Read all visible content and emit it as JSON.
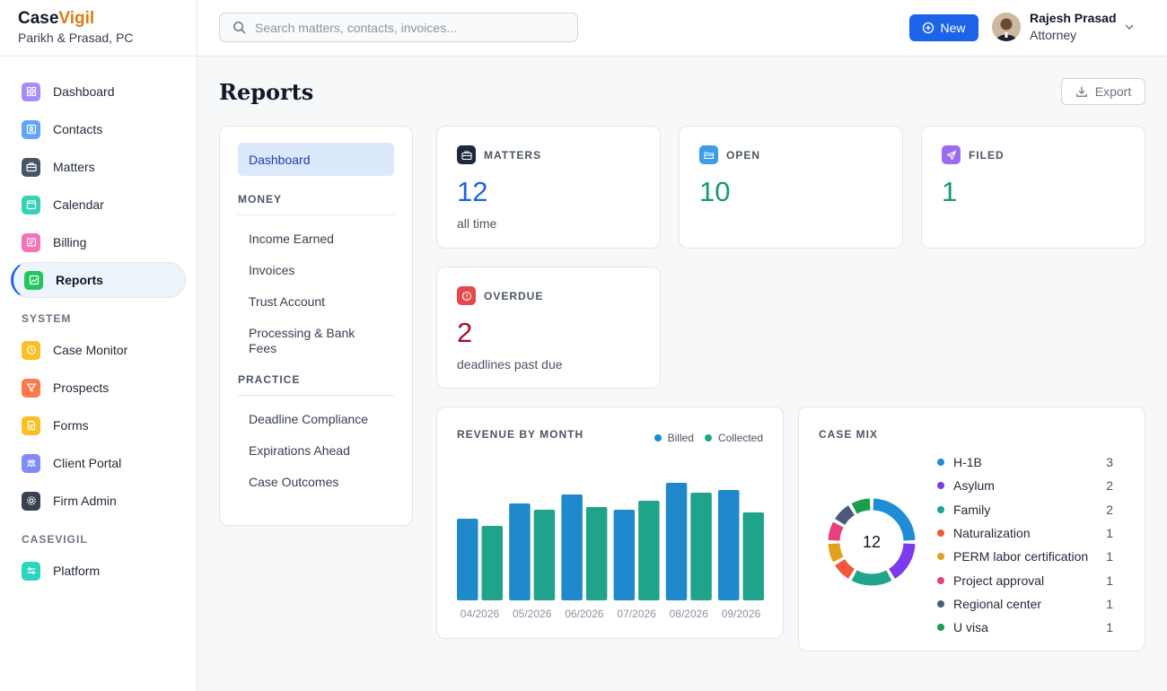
{
  "brand": {
    "name_prefix": "Case",
    "name_accent": "Vigil",
    "firm": "Parikh & Prasad, PC"
  },
  "sidebar": {
    "items": [
      {
        "label": "Dashboard",
        "icon": "grid-icon",
        "color": "#a78bfa"
      },
      {
        "label": "Contacts",
        "icon": "contact-card-icon",
        "color": "#60a5fa"
      },
      {
        "label": "Matters",
        "icon": "briefcase-icon",
        "color": "#475569"
      },
      {
        "label": "Calendar",
        "icon": "calendar-icon",
        "color": "#34d3b4"
      },
      {
        "label": "Billing",
        "icon": "receipt-icon",
        "color": "#f472b6"
      },
      {
        "label": "Reports",
        "icon": "chart-icon",
        "color": "#22c55e",
        "active": true
      }
    ],
    "system_label": "SYSTEM",
    "system_items": [
      {
        "label": "Case Monitor",
        "icon": "clock-icon",
        "color": "#fbbf24"
      },
      {
        "label": "Prospects",
        "icon": "funnel-icon",
        "color": "#fb7a4a"
      },
      {
        "label": "Forms",
        "icon": "document-icon",
        "color": "#fbbf24"
      },
      {
        "label": "Client Portal",
        "icon": "people-icon",
        "color": "#818cf8"
      },
      {
        "label": "Firm Admin",
        "icon": "gear-icon",
        "color": "#374151"
      }
    ],
    "casevigil_label": "CASEVIGIL",
    "casevigil_items": [
      {
        "label": "Platform",
        "icon": "sliders-icon",
        "color": "#2dd4bf"
      }
    ]
  },
  "topbar": {
    "search_placeholder": "Search matters, contacts, invoices...",
    "new_label": "New",
    "user_name": "Rajesh Prasad",
    "user_role": "Attorney"
  },
  "page": {
    "title": "Reports",
    "export_label": "Export"
  },
  "report_nav": {
    "active": "Dashboard",
    "money_label": "MONEY",
    "money_items": [
      "Income Earned",
      "Invoices",
      "Trust Account",
      "Processing & Bank Fees"
    ],
    "practice_label": "PRACTICE",
    "practice_items": [
      "Deadline Compliance",
      "Expirations Ahead",
      "Case Outcomes"
    ]
  },
  "stats": {
    "matters": {
      "label": "MATTERS",
      "value": "12",
      "sub": "all time",
      "color": "#1d63e8"
    },
    "open": {
      "label": "OPEN",
      "value": "10",
      "sub": "",
      "color": "#149a6b"
    },
    "filed": {
      "label": "FILED",
      "value": "1",
      "sub": "",
      "color": "#149a6b"
    },
    "overdue": {
      "label": "OVERDUE",
      "value": "2",
      "sub": "deadlines past due",
      "color": "#a3122e"
    }
  },
  "revenue": {
    "title": "REVENUE BY MONTH",
    "legend_billed": "Billed",
    "legend_collected": "Collected"
  },
  "casemix": {
    "title": "CASE MIX",
    "total": "12",
    "items": [
      {
        "label": "H-1B",
        "count": 3,
        "color": "#1f8dd6"
      },
      {
        "label": "Asylum",
        "count": 2,
        "color": "#7c3aed"
      },
      {
        "label": "Family",
        "count": 2,
        "color": "#1fa38a"
      },
      {
        "label": "Naturalization",
        "count": 1,
        "color": "#f4583a"
      },
      {
        "label": "PERM labor certification",
        "count": 1,
        "color": "#e0a21c"
      },
      {
        "label": "Project approval",
        "count": 1,
        "color": "#e8407f"
      },
      {
        "label": "Regional center",
        "count": 1,
        "color": "#4a5a7c"
      },
      {
        "label": "U visa",
        "count": 1,
        "color": "#1a9e4b"
      }
    ]
  },
  "chart_data": [
    {
      "type": "bar",
      "title": "REVENUE BY MONTH",
      "categories": [
        "04/2026",
        "05/2026",
        "06/2026",
        "07/2026",
        "08/2026",
        "09/2026"
      ],
      "series": [
        {
          "name": "Billed",
          "color": "#1f89cc",
          "values": [
            91,
            108,
            118,
            101,
            131,
            123
          ]
        },
        {
          "name": "Collected",
          "color": "#1fa38a",
          "values": [
            83,
            101,
            104,
            111,
            120,
            98
          ]
        }
      ],
      "ylim": [
        0,
        140
      ],
      "legend": "top-right",
      "grid": false
    },
    {
      "type": "pie",
      "title": "CASE MIX",
      "labels": [
        "H-1B",
        "Asylum",
        "Family",
        "Naturalization",
        "PERM labor certification",
        "Project approval",
        "Regional center",
        "U visa"
      ],
      "values": [
        3,
        2,
        2,
        1,
        1,
        1,
        1,
        1
      ],
      "center_label": "12"
    }
  ]
}
